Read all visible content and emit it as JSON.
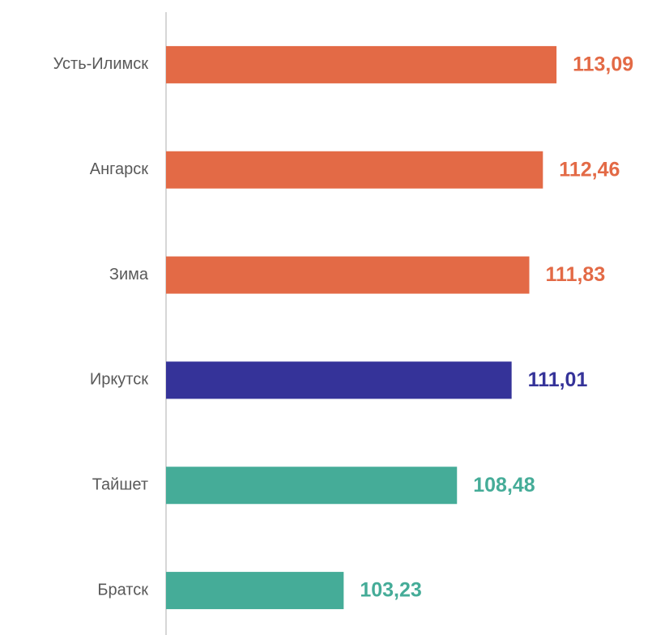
{
  "chart_data": {
    "type": "bar",
    "orientation": "horizontal",
    "categories": [
      "Усть-Илимск",
      "Ангарск",
      "Зима",
      "Иркутск",
      "Тайшет",
      "Братск"
    ],
    "values": [
      113.09,
      112.46,
      111.83,
      111.01,
      108.48,
      103.23
    ],
    "value_labels": [
      "113,09",
      "112,46",
      "111,83",
      "111,01",
      "108,48",
      "103,23"
    ],
    "colors": [
      "#e36a46",
      "#e36a46",
      "#e36a46",
      "#353399",
      "#45ac98",
      "#45ac98"
    ],
    "xlim": [
      95,
      115
    ]
  }
}
